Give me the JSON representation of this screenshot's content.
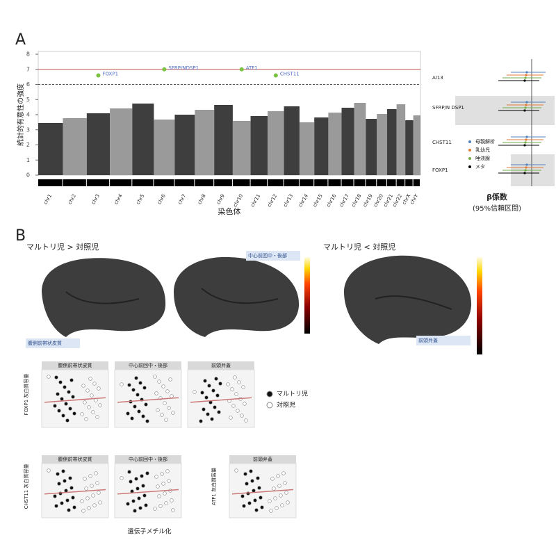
{
  "panel_a": {
    "letter": "A",
    "manhattan": {
      "y_label": "統計的有意性の強度",
      "x_label": "染色体",
      "ylim": [
        0,
        8
      ],
      "yticks": [
        0,
        1,
        2,
        3,
        4,
        5,
        6,
        7,
        8
      ],
      "chromosomes": [
        "chr1",
        "chr2",
        "chr3",
        "chr4",
        "chr5",
        "chr6",
        "chr7",
        "chr8",
        "chr9",
        "chr10",
        "chr11",
        "chr12",
        "chr13",
        "chr14",
        "chr15",
        "chr16",
        "chr17",
        "chr18",
        "chr19",
        "chr20",
        "chr21",
        "chr22",
        "chrX",
        "chrY"
      ],
      "significance_lines": [
        {
          "value": 7,
          "color": "#c0504d"
        },
        {
          "value": 6,
          "color": "#555555"
        }
      ],
      "peaks": [
        {
          "label": "FOXP1",
          "value": 6.6
        },
        {
          "label": "SFRP/NDSP1",
          "value": 7
        },
        {
          "label": "ATF1",
          "value": 7
        },
        {
          "label": "CHST11",
          "value": 6.6
        }
      ]
    },
    "forest": {
      "rows": [
        "AI13",
        "SFRP/N DSP1",
        "CHST11",
        "FOXP1"
      ],
      "legend": [
        {
          "name": "母親解析",
          "color": "#4f81bd"
        },
        {
          "name": "乳幼児",
          "color": "#e07b39"
        },
        {
          "name": "唾液腺",
          "color": "#6fae45"
        },
        {
          "name": "メタ",
          "color": "#000000"
        }
      ],
      "x_label": "β係数",
      "x_sublabel": "(95%信頼区間)"
    }
  },
  "panel_b": {
    "letter": "B",
    "left_title": "マルトリ児 > 対照児",
    "right_title": "マルトリ児 < 対照児",
    "regions": [
      "腹側前帯状皮質",
      "中心前回中・後部",
      "前頭弁蓋"
    ],
    "scatter_rows": [
      {
        "y_label": "FOXP1 灰白質容量",
        "panels": [
          "腹側前帯状皮質",
          "中心前回中・後部",
          "前頭弁蓋"
        ]
      },
      {
        "y_label": "CHST11 灰白質容量",
        "panels": [
          "腹側前帯状皮質",
          "中心前回中・後部"
        ]
      },
      {
        "y_label": "ATF1 灰白質容量",
        "panels": [
          "前頭弁蓋"
        ]
      }
    ],
    "legend": [
      "マルトリ児",
      "対照児"
    ],
    "x_label": "遺伝子メチル化"
  }
}
